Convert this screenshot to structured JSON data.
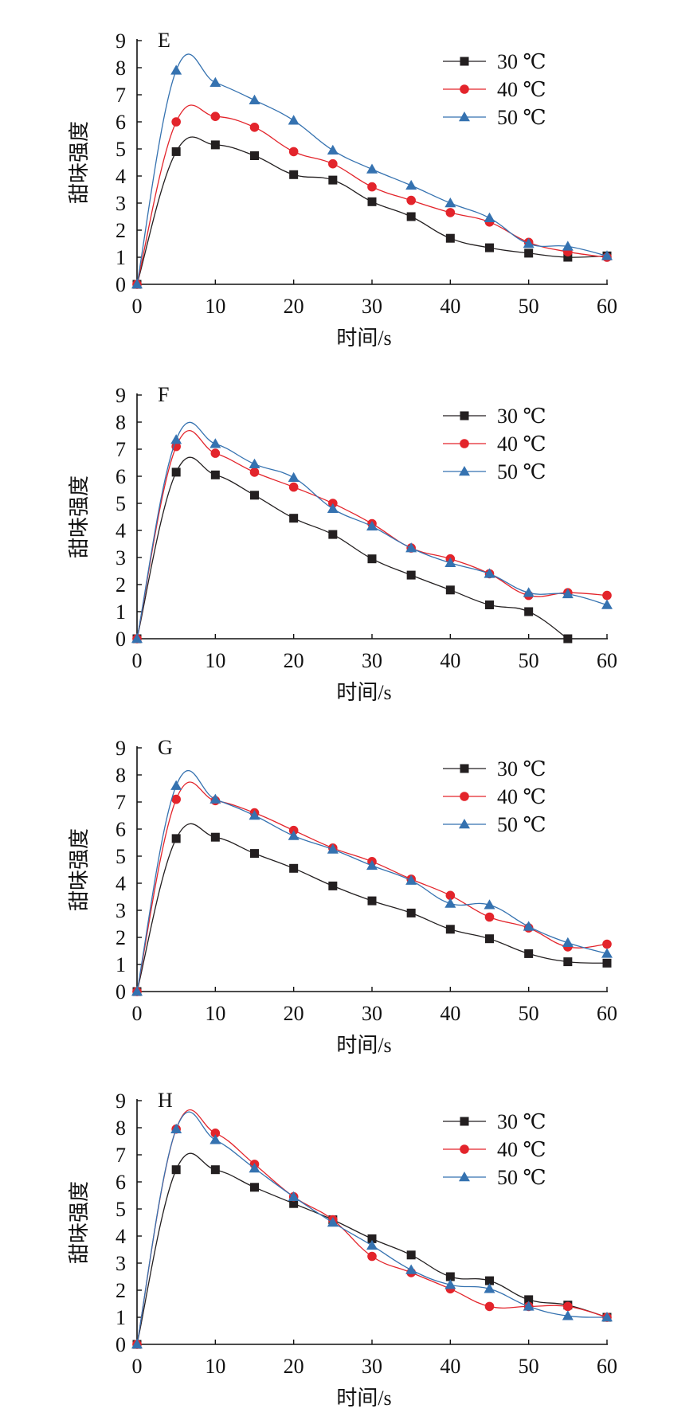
{
  "chart_data": [
    {
      "type": "line",
      "title": "E",
      "xlabel": "时间/s",
      "ylabel": "甜味强度",
      "xlim": [
        0,
        60
      ],
      "ylim": [
        0,
        9
      ],
      "x": [
        0,
        5,
        10,
        15,
        20,
        25,
        30,
        35,
        40,
        45,
        50,
        55,
        60
      ],
      "x_ticks": [
        "0",
        "10",
        "20",
        "30",
        "40",
        "50",
        "60"
      ],
      "y_ticks": [
        "0",
        "1",
        "2",
        "3",
        "4",
        "5",
        "6",
        "7",
        "8",
        "9"
      ],
      "legend_position": "top-right",
      "series": [
        {
          "name": "30 ℃",
          "color": "#231f20",
          "marker": "square",
          "values": [
            0,
            4.9,
            5.15,
            4.75,
            4.05,
            3.85,
            3.05,
            2.5,
            1.7,
            1.35,
            1.15,
            1.0,
            1.05
          ]
        },
        {
          "name": "40 ℃",
          "color": "#e3242b",
          "marker": "circle",
          "values": [
            0,
            6.0,
            6.2,
            5.8,
            4.9,
            4.45,
            3.6,
            3.1,
            2.65,
            2.3,
            1.55,
            1.2,
            1.0
          ]
        },
        {
          "name": "50 ℃",
          "color": "#3572b0",
          "marker": "triangle",
          "values": [
            0,
            7.9,
            7.45,
            6.8,
            6.05,
            4.95,
            4.25,
            3.65,
            3.0,
            2.45,
            1.5,
            1.4,
            1.05
          ]
        }
      ]
    },
    {
      "type": "line",
      "title": "F",
      "xlabel": "时间/s",
      "ylabel": "甜味强度",
      "xlim": [
        0,
        60
      ],
      "ylim": [
        0,
        9
      ],
      "x": [
        0,
        5,
        10,
        15,
        20,
        25,
        30,
        35,
        40,
        45,
        50,
        55,
        60
      ],
      "x_ticks": [
        "0",
        "10",
        "20",
        "30",
        "40",
        "50",
        "60"
      ],
      "y_ticks": [
        "0",
        "1",
        "2",
        "3",
        "4",
        "5",
        "6",
        "7",
        "8",
        "9"
      ],
      "legend_position": "top-right",
      "series": [
        {
          "name": "30 ℃",
          "color": "#231f20",
          "marker": "square",
          "values": [
            0,
            6.15,
            6.05,
            5.3,
            4.45,
            3.85,
            2.95,
            2.35,
            1.8,
            1.25,
            1.0,
            0.0,
            null
          ]
        },
        {
          "name": "40 ℃",
          "color": "#e3242b",
          "marker": "circle",
          "values": [
            0,
            7.1,
            6.85,
            6.15,
            5.6,
            5.0,
            4.25,
            3.35,
            2.95,
            2.4,
            1.6,
            1.7,
            1.6
          ]
        },
        {
          "name": "50 ℃",
          "color": "#3572b0",
          "marker": "triangle",
          "values": [
            0,
            7.35,
            7.2,
            6.45,
            5.95,
            4.8,
            4.15,
            3.35,
            2.8,
            2.4,
            1.7,
            1.65,
            1.25
          ]
        }
      ]
    },
    {
      "type": "line",
      "title": "G",
      "xlabel": "时间/s",
      "ylabel": "甜味强度",
      "xlim": [
        0,
        60
      ],
      "ylim": [
        0,
        9
      ],
      "x": [
        0,
        5,
        10,
        15,
        20,
        25,
        30,
        35,
        40,
        45,
        50,
        55,
        60
      ],
      "x_ticks": [
        "0",
        "10",
        "20",
        "30",
        "40",
        "50",
        "60"
      ],
      "y_ticks": [
        "0",
        "1",
        "2",
        "3",
        "4",
        "5",
        "6",
        "7",
        "8",
        "9"
      ],
      "legend_position": "top-right",
      "series": [
        {
          "name": "30 ℃",
          "color": "#231f20",
          "marker": "square",
          "values": [
            0,
            5.65,
            5.7,
            5.1,
            4.55,
            3.9,
            3.35,
            2.9,
            2.3,
            1.95,
            1.4,
            1.1,
            1.05
          ]
        },
        {
          "name": "40 ℃",
          "color": "#e3242b",
          "marker": "circle",
          "values": [
            0,
            7.1,
            7.05,
            6.6,
            5.95,
            5.3,
            4.8,
            4.15,
            3.55,
            2.75,
            2.35,
            1.65,
            1.75
          ]
        },
        {
          "name": "50 ℃",
          "color": "#3572b0",
          "marker": "triangle",
          "values": [
            0,
            7.6,
            7.1,
            6.5,
            5.75,
            5.25,
            4.65,
            4.1,
            3.25,
            3.2,
            2.4,
            1.8,
            1.4
          ]
        }
      ]
    },
    {
      "type": "line",
      "title": "H",
      "xlabel": "时间/s",
      "ylabel": "甜味强度",
      "xlim": [
        0,
        60
      ],
      "ylim": [
        0,
        9
      ],
      "x": [
        0,
        5,
        10,
        15,
        20,
        25,
        30,
        35,
        40,
        45,
        50,
        55,
        60
      ],
      "x_ticks": [
        "0",
        "10",
        "20",
        "30",
        "40",
        "50",
        "60"
      ],
      "y_ticks": [
        "0",
        "1",
        "2",
        "3",
        "4",
        "5",
        "6",
        "7",
        "8",
        "9"
      ],
      "legend_position": "top-right",
      "series": [
        {
          "name": "30 ℃",
          "color": "#231f20",
          "marker": "square",
          "values": [
            0,
            6.45,
            6.45,
            5.8,
            5.2,
            4.6,
            3.9,
            3.3,
            2.5,
            2.35,
            1.65,
            1.45,
            1.0
          ]
        },
        {
          "name": "40 ℃",
          "color": "#e3242b",
          "marker": "circle",
          "values": [
            0,
            7.95,
            7.8,
            6.65,
            5.45,
            4.6,
            3.25,
            2.65,
            2.05,
            1.4,
            1.4,
            1.4,
            1.0
          ]
        },
        {
          "name": "50 ℃",
          "color": "#3572b0",
          "marker": "triangle",
          "values": [
            0,
            7.95,
            7.55,
            6.5,
            5.45,
            4.5,
            3.65,
            2.75,
            2.2,
            2.05,
            1.4,
            1.05,
            1.0
          ]
        }
      ]
    }
  ]
}
